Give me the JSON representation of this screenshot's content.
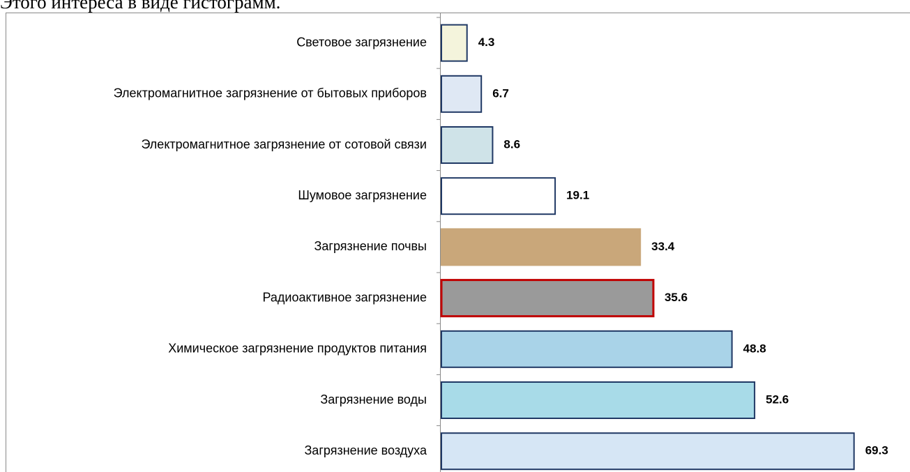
{
  "text": "Этого интереса в виде гистограмм.",
  "chart_data": {
    "type": "barh",
    "categories": [
      "Световое загрязнение",
      "Электромагнитное загрязнение от бытовых приборов",
      "Электромагнитное загрязнение от сотовой связи",
      "Шумовое загрязнение",
      "Загрязнение почвы",
      "Радиоактивное загрязнение",
      "Химическое загрязнение продуктов питания",
      "Загрязнение воды",
      "Загрязнение воздуха"
    ],
    "values": [
      4.3,
      6.7,
      8.6,
      19.1,
      33.4,
      35.6,
      48.8,
      52.6,
      69.3
    ],
    "value_labels": [
      "4.3",
      "6.7",
      "8.6",
      "19.1",
      "33.4",
      "35.6",
      "48.8",
      "52.6",
      "69.3"
    ],
    "colors": [
      "#f4f4dc",
      "#dfe8f4",
      "#cfe3e8",
      "#ffffff",
      "#c9a77a",
      "#9a9a9a",
      "#a9d3e8",
      "#a8dbe8",
      "#d6e6f5"
    ],
    "edgecolors": [
      "#1f3864",
      "#1f3864",
      "#1f3864",
      "#1f3864",
      "#c9a77a",
      "#c00000",
      "#1f3864",
      "#1f3864",
      "#1f3864"
    ],
    "xlim": [
      0,
      78
    ]
  }
}
